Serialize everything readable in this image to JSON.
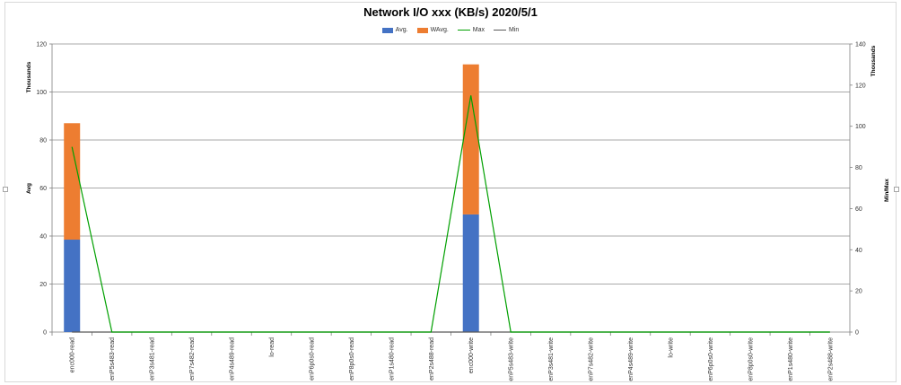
{
  "chart_data": {
    "type": "bar",
    "title": "Network I/O xxx (KB/s)  2020/5/1",
    "y_left_label": "Avg",
    "y_left_units": "Thousands",
    "y_right_label": "Min/Max",
    "y_right_units": "Thousands",
    "y_left_lim": [
      0,
      120
    ],
    "y_left_ticks": [
      "0",
      "20",
      "40",
      "60",
      "80",
      "100",
      "120"
    ],
    "y_right_lim": [
      0,
      140
    ],
    "y_right_ticks": [
      "0",
      "20",
      "40",
      "60",
      "80",
      "100",
      "120",
      "140"
    ],
    "grid": true,
    "legend_position": "top-center",
    "categories": [
      "enc000-read",
      "enP5s483-read",
      "enP3s481-read",
      "enP7s482-read",
      "enP4s489-read",
      "lo-read",
      "enP6p0s0-read",
      "enP8p0s0-read",
      "enP1s480-read",
      "enP2s488-read",
      "enc000-write",
      "enP5s483-write",
      "enP3s481-write",
      "enP7s482-write",
      "enP4s489-write",
      "lo-write",
      "enP6p0s0-write",
      "enP8p0s0-write",
      "enP1s480-write",
      "enP2s488-write"
    ],
    "series": [
      {
        "name": "Avg.",
        "kind": "bar",
        "axis": "left",
        "color": "#4472c4",
        "values": [
          38.5,
          0,
          0,
          0,
          0,
          0,
          0,
          0,
          0,
          0,
          49,
          0,
          0,
          0,
          0,
          0,
          0,
          0,
          0,
          0
        ]
      },
      {
        "name": "WAvg.",
        "kind": "bar",
        "axis": "left",
        "color": "#ed7d31",
        "values": [
          48.5,
          0,
          0,
          0,
          0,
          0,
          0,
          0,
          0,
          0,
          62.5,
          0,
          0,
          0,
          0,
          0,
          0,
          0,
          0,
          0
        ]
      },
      {
        "name": "Max",
        "kind": "line",
        "axis": "right",
        "color": "#00a000",
        "values": [
          90,
          0,
          0,
          0,
          0,
          0,
          0,
          0,
          0,
          0,
          115,
          0,
          0,
          0,
          0,
          0,
          0,
          0,
          0,
          0
        ]
      },
      {
        "name": "Min",
        "kind": "line",
        "axis": "right",
        "color": "#595959",
        "values": [
          0,
          0,
          0,
          0,
          0,
          0,
          0,
          0,
          0,
          0,
          0,
          0,
          0,
          0,
          0,
          0,
          0,
          0,
          0,
          0
        ]
      }
    ]
  }
}
